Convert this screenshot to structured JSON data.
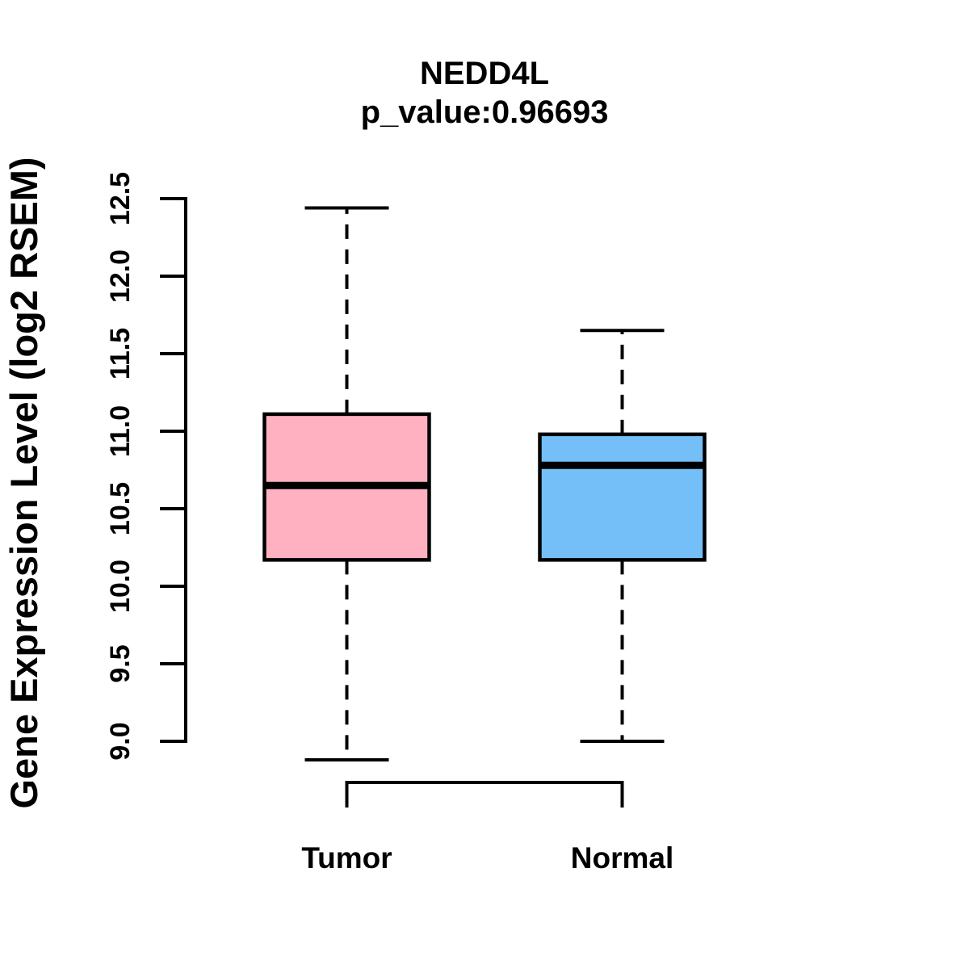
{
  "chart_data": {
    "type": "boxplot",
    "title": "NEDD4L",
    "subtitle": "p_value:0.96693",
    "ylabel": "Gene Expression Level (log2 RSEM)",
    "ylim": [
      9.0,
      12.5
    ],
    "ytick_values": [
      9.0,
      9.5,
      10.0,
      10.5,
      11.0,
      11.5,
      12.0,
      12.5
    ],
    "ytick_labels": [
      "9.0",
      "9.5",
      "10.0",
      "10.5",
      "11.0",
      "11.5",
      "12.0",
      "12.5"
    ],
    "grid": false,
    "legend": "none",
    "categories": [
      "Tumor",
      "Normal"
    ],
    "series": [
      {
        "name": "tumor",
        "label": "Tumor",
        "box_color": "#FFB1C1",
        "lower_whisker": 8.88,
        "q1": 10.17,
        "median": 10.65,
        "q3": 11.11,
        "upper_whisker": 12.44
      },
      {
        "name": "normal",
        "label": "Normal",
        "box_color": "#74BFF7",
        "lower_whisker": 9.0,
        "q1": 10.17,
        "median": 10.78,
        "q3": 10.98,
        "upper_whisker": 11.65
      }
    ],
    "stroke_color": "#000000",
    "background_color": "#FFFFFF"
  }
}
